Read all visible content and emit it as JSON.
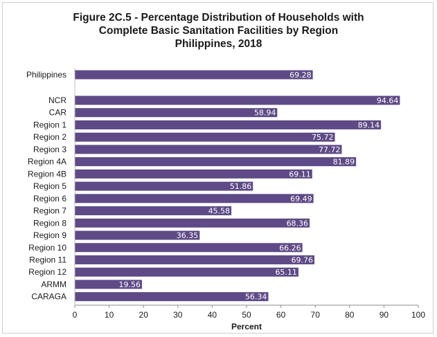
{
  "chart_data": {
    "type": "bar",
    "orientation": "horizontal",
    "title_lines": [
      "Figure 2C.5 - Percentage Distribution of Households with",
      "Complete Basic Sanitation Facilities by Region",
      "Philippines, 2018"
    ],
    "xlabel": "Percent",
    "ylabel": "",
    "xlim": [
      0,
      100
    ],
    "x_ticks": [
      0,
      10,
      20,
      30,
      40,
      50,
      60,
      70,
      80,
      90,
      100
    ],
    "grid": false,
    "legend": "none",
    "bar_color": "#5e4a86",
    "label_color": "#ffffff",
    "categories": [
      "Philippines",
      "NCR",
      "CAR",
      "Region 1",
      "Region 2",
      "Region 3",
      "Region 4A",
      "Region 4B",
      "Region 5",
      "Region 6",
      "Region 7",
      "Region 8",
      "Region 9",
      "Region 10",
      "Region 11",
      "Region 12",
      "ARMM",
      "CARAGA"
    ],
    "values": [
      69.28,
      94.64,
      58.94,
      89.14,
      75.72,
      77.72,
      81.89,
      69.11,
      51.86,
      69.49,
      45.58,
      68.36,
      36.35,
      66.26,
      69.76,
      65.11,
      19.56,
      56.34
    ],
    "value_labels": [
      "69.28",
      "94.64",
      "58.94",
      "89.14",
      "75.72",
      "77.72",
      "81.89",
      "69.11",
      "51.86",
      "69.49",
      "45.58",
      "68.36",
      "36.35",
      "66.26",
      "69.76",
      "65.11",
      "19.56",
      "56.34"
    ]
  }
}
